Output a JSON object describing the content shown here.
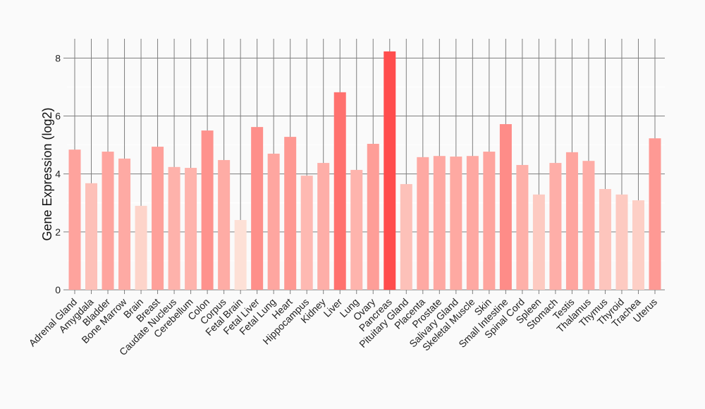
{
  "chart_data": {
    "type": "bar",
    "title": "",
    "xlabel": "",
    "ylabel": "Gene Expression (log2)",
    "ylim": [
      0,
      8.6
    ],
    "yticks": [
      0,
      2,
      4,
      6,
      8
    ],
    "grid": true,
    "categories": [
      "Adrenal Gland",
      "Amygdala",
      "Bladder",
      "Bone Marrow",
      "Brain",
      "Breast",
      "Caudate Nucleus",
      "Cerebellum",
      "Colon",
      "Corpus",
      "Fetal Brain",
      "Fetal Liver",
      "Fetal Lung",
      "Heart",
      "Hippocampus",
      "Kidney",
      "Liver",
      "Lung",
      "Ovary",
      "Pancreas",
      "Pituitary Gland",
      "Placenta",
      "Prostate",
      "Salivary Gland",
      "Skeletal Muscle",
      "Skin",
      "Small Intestine",
      "Spinal Cord",
      "Spleen",
      "Stomach",
      "Testis",
      "Thalamus",
      "Thymus",
      "Thyroid",
      "Trachea",
      "Uterus"
    ],
    "values": [
      4.84,
      3.68,
      4.77,
      4.53,
      2.9,
      4.94,
      4.24,
      4.21,
      5.5,
      4.48,
      2.41,
      5.62,
      4.7,
      5.28,
      3.94,
      4.38,
      6.82,
      4.14,
      5.04,
      8.23,
      3.65,
      4.58,
      4.62,
      4.6,
      4.62,
      4.77,
      5.72,
      4.31,
      3.29,
      4.38,
      4.75,
      4.45,
      3.48,
      3.29,
      3.09,
      5.23
    ],
    "color_low": "#fde0d6",
    "color_high": "#ff4d4d"
  }
}
